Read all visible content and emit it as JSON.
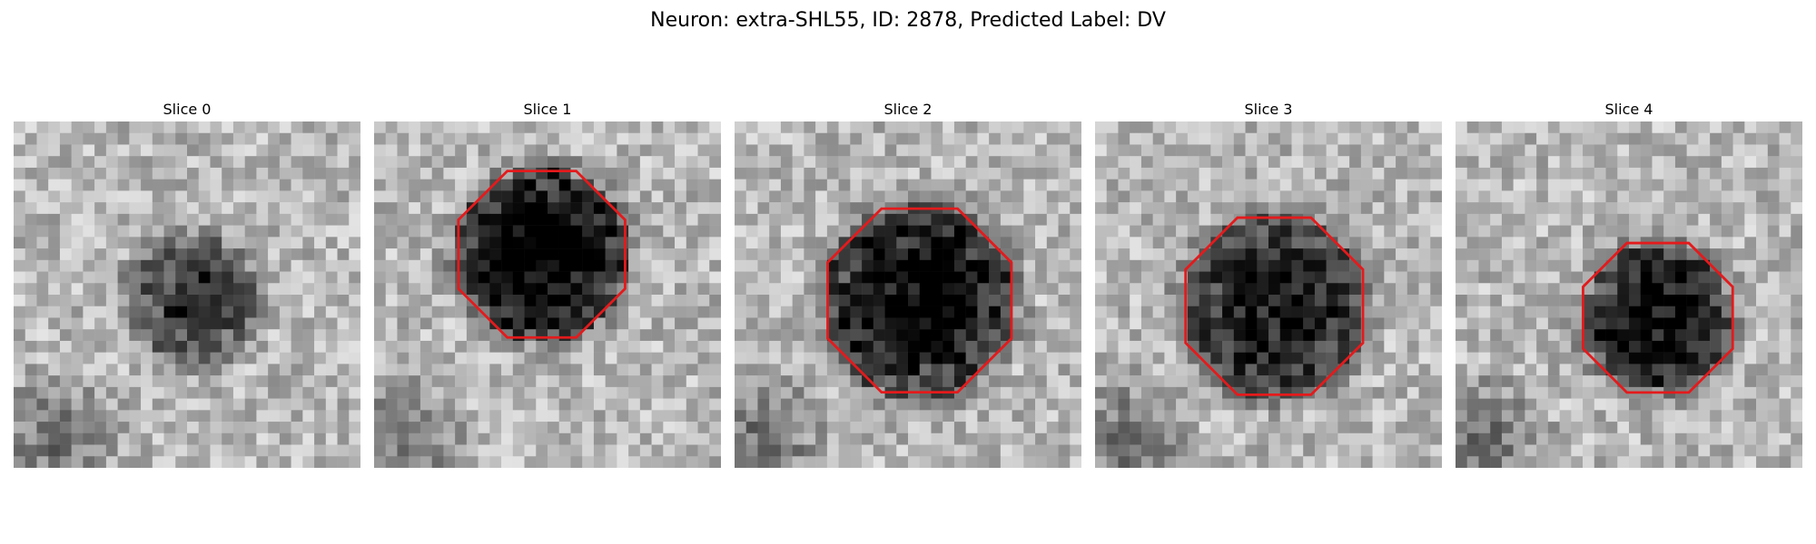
{
  "figure": {
    "title": "Neuron: extra-SHL55, ID: 2878, Predicted Label: DV"
  },
  "slices": [
    {
      "title": "Slice 0",
      "has_contour": false
    },
    {
      "title": "Slice 1",
      "has_contour": true
    },
    {
      "title": "Slice 2",
      "has_contour": true
    },
    {
      "title": "Slice 3",
      "has_contour": true
    },
    {
      "title": "Slice 4",
      "has_contour": true
    }
  ],
  "style": {
    "contour_color": "#e41a1c",
    "colormap": "gray"
  }
}
